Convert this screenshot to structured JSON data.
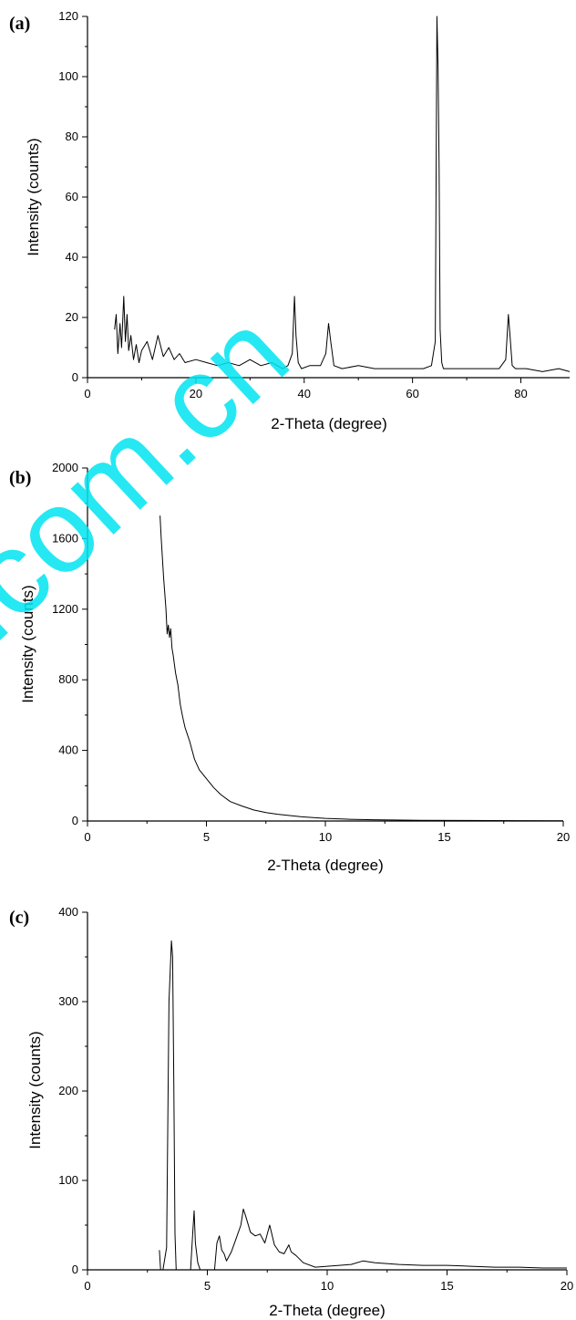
{
  "watermark": "j.com.cn",
  "chart_data": [
    {
      "panel": "(a)",
      "type": "line",
      "xlabel": "2-Theta (degree)",
      "ylabel": "Intensity (counts)",
      "xlim": [
        0,
        89
      ],
      "ylim": [
        0,
        120
      ],
      "xticks": [
        0,
        20,
        40,
        60,
        80
      ],
      "yticks": [
        0,
        20,
        40,
        60,
        80,
        100,
        120
      ],
      "series": [
        {
          "x": [
            5,
            5.3,
            5.6,
            6,
            6.3,
            6.7,
            7,
            7.3,
            7.6,
            8,
            8.5,
            9,
            9.5,
            10,
            11,
            12,
            13,
            14,
            15,
            16,
            17,
            18,
            20,
            22,
            24,
            26,
            28,
            30,
            32,
            34,
            36,
            37,
            37.8,
            38.2,
            38.5,
            38.9,
            39.5,
            41,
            43,
            44,
            44.5,
            44.9,
            45.5,
            47,
            50,
            53,
            56,
            59,
            62,
            63.5,
            64.2,
            64.5,
            64.7,
            64.9,
            65.1,
            65.4,
            65.7,
            66.3,
            68,
            71,
            74,
            76,
            77.2,
            77.7,
            78,
            78.4,
            79,
            81,
            84,
            87,
            89
          ],
          "y": [
            16,
            21,
            8,
            18,
            10,
            27,
            12,
            21,
            9,
            14,
            6,
            11,
            5,
            9,
            12,
            6,
            14,
            7,
            10,
            6,
            8,
            5,
            6,
            5,
            4,
            5,
            4,
            6,
            4,
            5,
            3,
            4,
            8,
            27,
            14,
            5,
            3,
            4,
            4,
            8,
            18,
            12,
            4,
            3,
            4,
            3,
            3,
            3,
            3,
            4,
            12,
            120,
            104,
            70,
            16,
            5,
            3,
            3,
            3,
            3,
            3,
            3,
            6,
            21,
            14,
            4,
            3,
            3,
            2,
            3,
            2
          ]
        }
      ]
    },
    {
      "panel": "(b)",
      "type": "line",
      "xlabel": "2-Theta (degree)",
      "ylabel": "Intensity (counts)",
      "xlim": [
        0,
        20
      ],
      "ylim": [
        0,
        2000
      ],
      "xticks": [
        0,
        5,
        10,
        15,
        20
      ],
      "yticks": [
        0,
        400,
        800,
        1200,
        1600,
        2000
      ],
      "series": [
        {
          "x": [
            3.05,
            3.1,
            3.2,
            3.3,
            3.35,
            3.4,
            3.45,
            3.5,
            3.55,
            3.6,
            3.7,
            3.8,
            3.9,
            4.0,
            4.1,
            4.2,
            4.3,
            4.4,
            4.5,
            4.7,
            5.0,
            5.3,
            5.6,
            6.0,
            6.5,
            7.0,
            7.5,
            8.0,
            9.0,
            10.0,
            11.0,
            12.0,
            14.0,
            16.0,
            18.0,
            20.0
          ],
          "y": [
            1730,
            1600,
            1380,
            1200,
            1060,
            1110,
            1040,
            1090,
            980,
            940,
            840,
            770,
            660,
            590,
            530,
            490,
            450,
            400,
            350,
            290,
            240,
            190,
            150,
            110,
            85,
            62,
            48,
            38,
            24,
            15,
            10,
            7,
            4,
            3,
            2,
            1
          ]
        }
      ]
    },
    {
      "panel": "(c)",
      "type": "line",
      "xlabel": "2-Theta (degree)",
      "ylabel": "Intensity (counts)",
      "xlim": [
        0,
        20
      ],
      "ylim": [
        0,
        400
      ],
      "xticks": [
        0,
        5,
        10,
        15,
        20
      ],
      "yticks": [
        0,
        100,
        200,
        300,
        400
      ],
      "series": [
        {
          "x": [
            3.0,
            3.05,
            3.1,
            3.15,
            3.3,
            3.4,
            3.5,
            3.55,
            3.6,
            3.65,
            3.7,
            3.8,
            4.3,
            4.4,
            4.45,
            4.5,
            4.6,
            4.7,
            5.3,
            5.4,
            5.5,
            5.6,
            5.7,
            5.8,
            6.0,
            6.2,
            6.4,
            6.5,
            6.6,
            6.8,
            7.0,
            7.2,
            7.4,
            7.6,
            7.8,
            8.0,
            8.2,
            8.4,
            8.5,
            8.7,
            9.0,
            9.5,
            10.0,
            11.0,
            11.5,
            12.0,
            13.0,
            14.0,
            15.0,
            16.0,
            17.0,
            18.0,
            19.0,
            20.0
          ],
          "y": [
            22,
            0,
            0,
            0,
            25,
            300,
            368,
            350,
            210,
            40,
            0,
            0,
            0,
            45,
            66,
            30,
            8,
            0,
            0,
            30,
            38,
            22,
            18,
            10,
            20,
            35,
            50,
            68,
            60,
            42,
            38,
            40,
            30,
            50,
            28,
            20,
            18,
            28,
            20,
            16,
            8,
            3,
            4,
            6,
            10,
            8,
            6,
            5,
            5,
            4,
            3,
            3,
            2,
            2
          ]
        }
      ]
    }
  ]
}
